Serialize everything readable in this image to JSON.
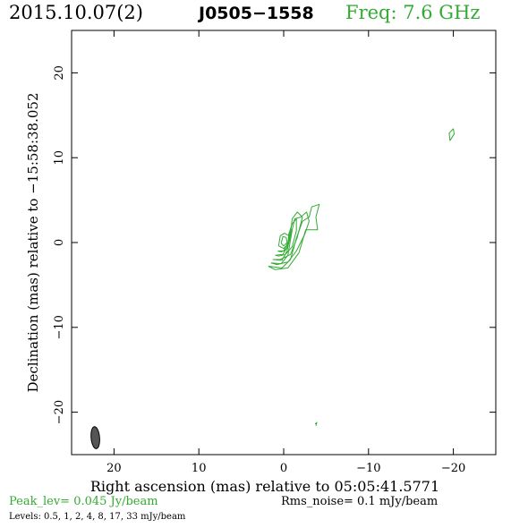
{
  "header": {
    "date": "2015.10.07(2)",
    "source": "J0505−1558",
    "freq": "Freq: 7.6 GHz"
  },
  "footer": {
    "peak": "Peak_lev=  0.045 Jy/beam",
    "rms": "Rms_noise=   0.1 mJy/beam",
    "levels": "Levels: 0.5,    1,    2,    4,    8,   17,   33 mJy/beam"
  },
  "colors": {
    "contour": "#33aa33",
    "header_green": "#33aa33",
    "axes": "#000000",
    "beam": "#555555"
  },
  "chart_data": {
    "type": "contour",
    "xlabel": "Right ascension (mas) relative to 05:05:41.5771",
    "ylabel": "Declination (mas) relative to −15:58:38.052",
    "xlim": [
      25,
      -25
    ],
    "ylim": [
      -25,
      25
    ],
    "x_ticks": [
      20,
      10,
      0,
      -10,
      -20
    ],
    "x_tick_labels": [
      "20",
      "10",
      "0",
      "−10",
      "−20"
    ],
    "y_ticks": [
      20,
      10,
      0,
      -10,
      -20
    ],
    "y_tick_labels": [
      "20",
      "10",
      "0",
      "−10",
      "−20"
    ],
    "levels_mJy_per_beam": [
      0.5,
      1,
      2,
      4,
      8,
      17,
      33
    ],
    "peak_Jy_per_beam": 0.045,
    "rms_noise_mJy_per_beam": 0.1,
    "contours": [
      {
        "level": 0.5,
        "points": [
          [
            1.8,
            -2.8
          ],
          [
            0.2,
            -3.0
          ],
          [
            -0.8,
            -2.0
          ],
          [
            -1.5,
            0.5
          ],
          [
            -2.2,
            2.5
          ],
          [
            -3.0,
            3.0
          ],
          [
            -3.3,
            4.2
          ],
          [
            -4.2,
            4.5
          ],
          [
            -3.8,
            3.0
          ],
          [
            -4.0,
            1.5
          ],
          [
            -2.6,
            1.5
          ],
          [
            -1.8,
            -1.2
          ],
          [
            -0.5,
            -3.0
          ],
          [
            1.0,
            -3.2
          ],
          [
            1.8,
            -2.8
          ]
        ]
      },
      {
        "level": 1,
        "points": [
          [
            1.5,
            -2.4
          ],
          [
            0.3,
            -2.5
          ],
          [
            -0.5,
            -1.5
          ],
          [
            -1.0,
            1.5
          ],
          [
            -1.3,
            2.8
          ],
          [
            -2.0,
            3.0
          ],
          [
            -2.7,
            3.6
          ],
          [
            -3.0,
            2.5
          ],
          [
            -2.5,
            1.0
          ],
          [
            -1.5,
            -1.0
          ],
          [
            -0.5,
            -2.3
          ],
          [
            0.8,
            -2.6
          ],
          [
            1.5,
            -2.4
          ]
        ]
      },
      {
        "level": 2,
        "points": [
          [
            1.3,
            -2.0
          ],
          [
            0.2,
            -2.1
          ],
          [
            -0.4,
            -1.0
          ],
          [
            -0.8,
            1.0
          ],
          [
            -1.0,
            2.8
          ],
          [
            -1.6,
            3.6
          ],
          [
            -2.2,
            3.0
          ],
          [
            -1.6,
            0.6
          ],
          [
            -0.8,
            -1.4
          ],
          [
            0.4,
            -2.0
          ],
          [
            1.3,
            -2.0
          ]
        ]
      },
      {
        "level": 4,
        "points": [
          [
            1.0,
            -1.5
          ],
          [
            0.1,
            -1.4
          ],
          [
            -0.5,
            -0.4
          ],
          [
            -0.6,
            1.0
          ],
          [
            -1.0,
            2.2
          ],
          [
            -1.5,
            2.8
          ],
          [
            -1.5,
            1.4
          ],
          [
            -1.0,
            -0.5
          ],
          [
            -0.2,
            -1.4
          ],
          [
            0.6,
            -1.6
          ],
          [
            1.0,
            -1.5
          ]
        ]
      },
      {
        "level": 8,
        "points": [
          [
            0.7,
            -1.0
          ],
          [
            0.0,
            -1.0
          ],
          [
            -0.5,
            0.0
          ],
          [
            -0.7,
            1.0
          ],
          [
            -0.9,
            1.5
          ],
          [
            -0.7,
            0.3
          ],
          [
            -0.3,
            -0.8
          ],
          [
            0.3,
            -1.1
          ],
          [
            0.7,
            -1.0
          ]
        ]
      },
      {
        "level": 17,
        "points": [
          [
            0.6,
            -0.4
          ],
          [
            0.0,
            -0.7
          ],
          [
            -0.6,
            -0.1
          ],
          [
            -0.6,
            0.8
          ],
          [
            -0.1,
            1.1
          ],
          [
            0.4,
            0.8
          ],
          [
            0.6,
            -0.4
          ]
        ]
      },
      {
        "level": 33,
        "points": [
          [
            0.3,
            -0.1
          ],
          [
            0.0,
            -0.4
          ],
          [
            -0.4,
            0.0
          ],
          [
            -0.3,
            0.6
          ],
          [
            0.1,
            0.7
          ],
          [
            0.3,
            -0.1
          ]
        ]
      },
      {
        "level": 0.5,
        "points": [
          [
            -19.6,
            12.0
          ],
          [
            -20.1,
            12.8
          ],
          [
            -20.0,
            13.4
          ],
          [
            -19.5,
            12.9
          ],
          [
            -19.6,
            12.0
          ]
        ]
      },
      {
        "level": 0.5,
        "points": [
          [
            -3.8,
            -21.6
          ],
          [
            -3.9,
            -21.2
          ],
          [
            -3.7,
            -21.4
          ]
        ]
      }
    ],
    "beam": {
      "x": 22.2,
      "y": -23.0,
      "major_mas": 2.6,
      "minor_mas": 1.0,
      "pa_deg": -5
    }
  }
}
